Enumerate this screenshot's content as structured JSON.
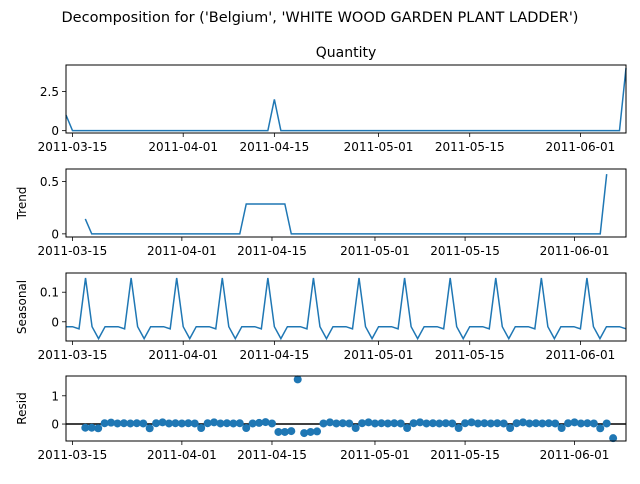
{
  "suptitle": "Decomposition for ('Belgium', 'WHITE WOOD GARDEN PLANT LADDER')",
  "chart_data": [
    {
      "type": "line",
      "title": "Quantity",
      "ylabel": "",
      "start_date": "2011-03-14",
      "ylim": [
        -0.15,
        4.2
      ],
      "yticks": [
        0.0,
        2.5
      ],
      "xticks": [
        "2011-03-15",
        "2011-04-01",
        "2011-04-15",
        "2011-05-01",
        "2011-05-15",
        "2011-06-01"
      ],
      "values": [
        1,
        0,
        0,
        0,
        0,
        0,
        0,
        0,
        0,
        0,
        0,
        0,
        0,
        0,
        0,
        0,
        0,
        0,
        0,
        0,
        0,
        0,
        0,
        0,
        0,
        0,
        0,
        0,
        0,
        0,
        0,
        0,
        2,
        0,
        0,
        0,
        0,
        0,
        0,
        0,
        0,
        0,
        0,
        0,
        0,
        0,
        0,
        0,
        0,
        0,
        0,
        0,
        0,
        0,
        0,
        0,
        0,
        0,
        0,
        0,
        0,
        0,
        0,
        0,
        0,
        0,
        0,
        0,
        0,
        0,
        0,
        0,
        0,
        0,
        0,
        0,
        0,
        0,
        0,
        0,
        0,
        0,
        0,
        0,
        0,
        0,
        4
      ]
    },
    {
      "type": "line",
      "title": "",
      "ylabel": "Trend",
      "start_date": "2011-03-14",
      "ylim": [
        -0.03,
        0.62
      ],
      "yticks": [
        0.0,
        0.5
      ],
      "xticks": [
        "2011-03-15",
        "2011-04-01",
        "2011-04-15",
        "2011-05-01",
        "2011-05-15",
        "2011-06-01"
      ],
      "values": [
        null,
        null,
        null,
        0.143,
        0,
        0,
        0,
        0,
        0,
        0,
        0,
        0,
        0,
        0,
        0,
        0,
        0,
        0,
        0,
        0,
        0,
        0,
        0,
        0,
        0,
        0,
        0,
        0,
        0.286,
        0.286,
        0.286,
        0.286,
        0.286,
        0.286,
        0.286,
        0,
        0,
        0,
        0,
        0,
        0,
        0,
        0,
        0,
        0,
        0,
        0,
        0,
        0,
        0,
        0,
        0,
        0,
        0,
        0,
        0,
        0,
        0,
        0,
        0,
        0,
        0,
        0,
        0,
        0,
        0,
        0,
        0,
        0,
        0,
        0,
        0,
        0,
        0,
        0,
        0,
        0,
        0,
        0,
        0,
        0,
        0,
        0,
        0,
        0.571,
        null,
        null,
        null
      ]
    },
    {
      "type": "line",
      "title": "",
      "ylabel": "Seasonal",
      "start_date": "2011-03-14",
      "ylim": [
        -0.065,
        0.165
      ],
      "yticks": [
        0.0,
        0.1
      ],
      "xticks": [
        "2011-03-15",
        "2011-04-01",
        "2011-04-15",
        "2011-05-01",
        "2011-05-15",
        "2011-06-01"
      ],
      "pattern": [
        -0.0166,
        -0.0166,
        -0.0238,
        0.148,
        -0.0166,
        -0.0571,
        -0.0166
      ],
      "values": []
    },
    {
      "type": "scatter",
      "title": "",
      "ylabel": "Resid",
      "start_date": "2011-03-14",
      "ylim": [
        -0.6,
        1.7
      ],
      "yticks": [
        0,
        1
      ],
      "xticks": [
        "2011-03-15",
        "2011-04-01",
        "2011-04-15",
        "2011-05-01",
        "2011-05-15",
        "2011-06-01"
      ],
      "zero_line": true,
      "values": [
        null,
        null,
        null,
        -0.13,
        -0.13,
        -0.15,
        0.03,
        0.05,
        0.02,
        0.03,
        0.02,
        0.03,
        0.02,
        -0.15,
        0.03,
        0.06,
        0.02,
        0.03,
        0.02,
        0.03,
        0.02,
        -0.14,
        0.03,
        0.06,
        0.02,
        0.03,
        0.02,
        0.03,
        -0.14,
        0.02,
        0.04,
        0.07,
        0.02,
        -0.28,
        -0.28,
        -0.25,
        1.58,
        -0.32,
        -0.28,
        -0.26,
        0.02,
        0.06,
        0.02,
        0.03,
        0.02,
        -0.14,
        0.03,
        0.06,
        0.02,
        0.03,
        0.02,
        0.03,
        0.02,
        -0.14,
        0.03,
        0.06,
        0.02,
        0.03,
        0.02,
        0.03,
        0.02,
        -0.14,
        0.03,
        0.06,
        0.02,
        0.03,
        0.02,
        0.03,
        0.02,
        -0.14,
        0.03,
        0.06,
        0.02,
        0.03,
        0.02,
        0.03,
        0.02,
        -0.14,
        0.03,
        0.06,
        0.02,
        0.03,
        0.02,
        -0.15,
        0.02,
        -0.5,
        null,
        null
      ]
    }
  ]
}
